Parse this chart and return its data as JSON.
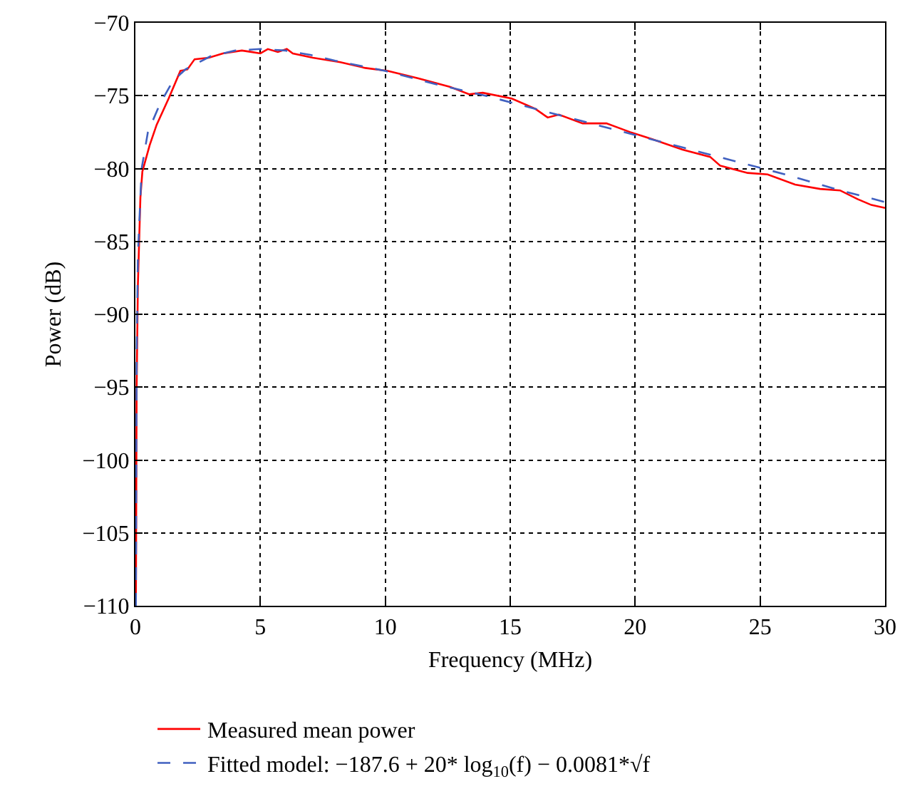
{
  "chart_data": {
    "type": "line",
    "xlabel": "Frequency (MHz)",
    "ylabel": "Power (dB)",
    "xlim": [
      0,
      30
    ],
    "xticks": [
      0,
      5,
      10,
      15,
      20,
      25,
      30
    ],
    "ylim": [
      -110,
      -70
    ],
    "yticks": [
      -110,
      -105,
      -100,
      -95,
      -90,
      -85,
      -80,
      -75,
      -70
    ],
    "grid": true,
    "legend": "bottom",
    "series": [
      {
        "name": "Measured mean power",
        "color": "#ff0000",
        "line_style": "solid",
        "x": [
          0.02,
          0.05,
          0.1,
          0.2,
          0.28,
          0.57,
          0.85,
          1.33,
          1.8,
          2.08,
          2.37,
          2.94,
          3.5,
          4.26,
          4.64,
          5.0,
          5.3,
          5.7,
          6.06,
          6.3,
          7.1,
          8.2,
          9.2,
          10.1,
          11.3,
          12.6,
          13.35,
          13.9,
          15.06,
          16.0,
          16.5,
          16.95,
          17.9,
          18.85,
          19.8,
          20.17,
          20.7,
          21.9,
          23.0,
          23.4,
          24.5,
          25.3,
          26.4,
          27.4,
          28.2,
          28.9,
          29.45,
          30.0
        ],
        "values": [
          -110,
          -95,
          -88,
          -82,
          -80.2,
          -78.4,
          -77.0,
          -75.2,
          -73.3,
          -73.2,
          -72.5,
          -72.4,
          -72.1,
          -71.9,
          -72.0,
          -72.1,
          -71.8,
          -72.0,
          -71.8,
          -72.1,
          -72.4,
          -72.7,
          -73.1,
          -73.3,
          -73.8,
          -74.4,
          -74.9,
          -74.8,
          -75.2,
          -75.9,
          -76.5,
          -76.3,
          -76.9,
          -76.9,
          -77.5,
          -77.7,
          -78.0,
          -78.7,
          -79.2,
          -79.8,
          -80.3,
          -80.4,
          -81.1,
          -81.4,
          -81.5,
          -82.1,
          -82.5,
          -82.7
        ]
      },
      {
        "name": "Fitted model: −187.6 + 20* log$_{10}$(f) − 0.0081*√f",
        "color": "#4060c0",
        "line_style": "dashed",
        "x": [
          0.02,
          0.05,
          0.1,
          0.25,
          0.5,
          1,
          1.5,
          2,
          3,
          4,
          5,
          6,
          7,
          8,
          10,
          12,
          14,
          16,
          18,
          20,
          22,
          24,
          26,
          28,
          30
        ],
        "values": [
          -110,
          -93,
          -86,
          -80,
          -77.5,
          -75.5,
          -74,
          -73.2,
          -72.3,
          -71.9,
          -71.8,
          -71.9,
          -72.2,
          -72.6,
          -73.3,
          -74.2,
          -75.0,
          -75.9,
          -76.8,
          -77.7,
          -78.6,
          -79.5,
          -80.4,
          -81.4,
          -82.3
        ]
      }
    ]
  }
}
